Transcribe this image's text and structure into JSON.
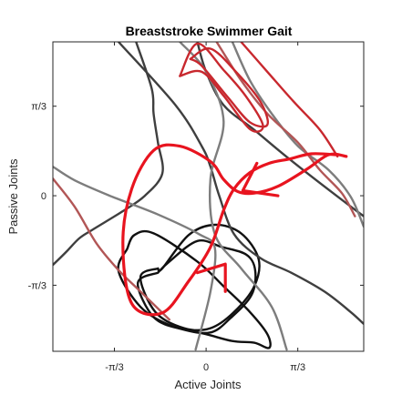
{
  "chart_data": {
    "type": "line",
    "title": "Breaststroke Swimmer Gait",
    "xlabel": "Active Joints",
    "ylabel": "Passive Joints",
    "xlim": [
      -1.75,
      1.8
    ],
    "ylim": [
      -1.82,
      1.8
    ],
    "grid": false,
    "legend": "none",
    "x_ticks": [
      {
        "value": -1.0472,
        "label": "-π/3"
      },
      {
        "value": 0,
        "label": "0"
      },
      {
        "value": 1.0472,
        "label": "π/3"
      }
    ],
    "y_ticks": [
      {
        "value": 1.0472,
        "label": "π/3"
      },
      {
        "value": 0,
        "label": "0"
      },
      {
        "value": -1.0472,
        "label": "-π/3"
      }
    ],
    "colors": {
      "gait": "#e8141f",
      "contour_black": "#111111",
      "contour_darkgray": "#3f3f3f",
      "contour_gray": "#7d7d7d",
      "contour_lightred": "#b25656",
      "contour_red": "#c8282e"
    },
    "series": [
      {
        "color_key": "contour_black",
        "x": [
          -0.55,
          -0.75,
          -0.58,
          -0.25,
          0.05,
          0.32,
          0.55,
          0.6,
          0.4,
          0.1,
          -0.2,
          -0.5,
          -0.55
        ]
      },
      {
        "color_key": "contour_black",
        "x": [
          -0.55,
          -0.78,
          -0.6,
          -0.28,
          0.05,
          0.28,
          0.52,
          0.56,
          0.46,
          0.18,
          -0.1,
          -0.42,
          -0.55
        ]
      },
      {
        "color_key": "contour_black",
        "x": [
          -0.9,
          -1.0,
          -0.75,
          -0.4,
          0.0,
          0.3,
          0.55,
          0.72,
          0.7,
          0.5,
          0.2,
          -0.1,
          -0.6,
          -0.82,
          -0.9
        ]
      },
      {
        "color_key": "contour_darkgray",
        "x": [
          -1.0,
          -0.35,
          -0.05,
          0.05,
          0.15,
          0.32,
          0.62,
          0.97,
          1.35,
          1.65,
          1.8
        ]
      },
      {
        "color_key": "contour_darkgray",
        "x": [
          -0.8,
          -0.62,
          -0.6,
          -0.55,
          -0.5,
          -0.7,
          -0.95,
          -1.3,
          -1.45,
          -1.6,
          -1.75
        ]
      },
      {
        "color_key": "contour_darkgray",
        "x": [
          -0.1,
          0.0,
          0.2,
          0.55,
          0.95,
          1.45,
          1.8
        ]
      },
      {
        "color_key": "contour_gray",
        "x": [
          -0.3,
          0.0,
          0.2,
          0.05,
          0.1,
          0.4,
          0.75,
          0.92
        ]
      },
      {
        "color_key": "contour_gray",
        "x": [
          0.3,
          0.5,
          0.75,
          1.05,
          1.4,
          1.65,
          1.8
        ]
      },
      {
        "color_key": "contour_gray",
        "x": [
          -0.12,
          0.05,
          0.1,
          -0.08,
          -0.55,
          -1.1,
          -1.5,
          -1.75
        ]
      },
      {
        "color_key": "contour_lightred",
        "x": [
          0.12,
          0.4,
          0.7,
          1.05,
          1.3,
          1.55,
          1.7
        ]
      },
      {
        "color_key": "contour_lightred",
        "x": [
          -1.75,
          -1.5,
          -1.25,
          -1.0,
          -0.75,
          -0.42
        ]
      },
      {
        "color_key": "contour_red",
        "x": [
          0.4,
          0.7,
          1.0,
          1.3,
          1.5
        ]
      },
      {
        "color_key": "contour_red",
        "x": [
          -0.3,
          -0.1,
          0.2,
          0.45,
          0.65,
          0.5,
          0.2,
          -0.05,
          -0.3
        ]
      },
      {
        "color_key": "contour_red",
        "x": [
          -0.18,
          0.05,
          0.35,
          0.62,
          0.7,
          0.5,
          0.25,
          -0.05,
          -0.18
        ]
      },
      {
        "color_key": "gait",
        "x": [
          1.6,
          1.4,
          1.15,
          0.82,
          0.55,
          0.36,
          0.2,
          0.05,
          -0.3,
          -0.6,
          -0.85,
          -0.95,
          -0.85,
          -0.5,
          -0.2,
          0.05,
          0.2,
          0.32,
          0.5,
          0.72,
          0.95,
          1.2,
          1.48
        ]
      },
      {
        "color_key": "gait",
        "x": [
          0.58,
          0.42,
          0.82
        ]
      },
      {
        "color_key": "gait",
        "x": [
          -0.1,
          0.22,
          0.22
        ]
      }
    ],
    "series_y": [
      [
        -0.85,
        -0.95,
        -1.36,
        -1.55,
        -1.55,
        -1.36,
        -1.06,
        -0.74,
        -0.44,
        -0.34,
        -0.46,
        -0.85,
        -0.85
      ],
      [
        -0.9,
        -1.02,
        -1.42,
        -1.56,
        -1.6,
        -1.43,
        -1.16,
        -0.87,
        -0.69,
        -0.6,
        -0.53,
        -0.77,
        -0.9
      ],
      [
        -0.62,
        -0.88,
        -1.3,
        -1.52,
        -1.62,
        -1.7,
        -1.72,
        -1.78,
        -1.62,
        -1.36,
        -1.06,
        -0.77,
        -0.44,
        -0.46,
        -0.62
      ],
      [
        1.8,
        1.06,
        0.58,
        0.34,
        0.0,
        -0.45,
        -0.73,
        -0.9,
        -1.12,
        -1.36,
        -1.5
      ],
      [
        1.8,
        1.25,
        0.96,
        0.62,
        0.26,
        0.0,
        -0.18,
        -0.4,
        -0.5,
        -0.66,
        -0.81
      ],
      [
        1.8,
        1.45,
        1.06,
        0.77,
        0.43,
        0.03,
        -0.24
      ],
      [
        1.8,
        1.45,
        0.87,
        0.2,
        -0.45,
        -0.85,
        -1.3,
        -1.8
      ],
      [
        1.8,
        1.35,
        0.96,
        0.58,
        0.3,
        -0.01,
        -0.36
      ],
      [
        -1.8,
        -1.12,
        -0.61,
        -0.45,
        -0.22,
        0.0,
        0.18,
        0.34
      ],
      [
        1.8,
        1.35,
        0.96,
        0.62,
        0.3,
        0.03,
        -0.24
      ],
      [
        0.2,
        -0.13,
        -0.56,
        -0.87,
        -1.12,
        -1.45
      ],
      [
        1.8,
        1.45,
        1.1,
        0.77,
        0.46
      ],
      [
        1.4,
        1.78,
        1.47,
        1.17,
        0.82,
        0.78,
        1.17,
        1.45,
        1.4
      ],
      [
        1.6,
        1.72,
        1.44,
        1.1,
        0.83,
        0.86,
        1.15,
        1.52,
        1.6
      ],
      [
        0.46,
        0.48,
        0.31,
        0.11,
        0.03,
        0.05,
        0.19,
        0.4,
        0.58,
        0.53,
        0.08,
        -0.55,
        -1.26,
        -1.37,
        -1.0,
        -0.6,
        -0.17,
        0.08,
        0.27,
        0.38,
        0.43,
        0.49,
        0.48
      ],
      [
        0.38,
        0.06,
        0.0
      ],
      [
        -0.9,
        -0.8,
        -1.12
      ]
    ]
  }
}
